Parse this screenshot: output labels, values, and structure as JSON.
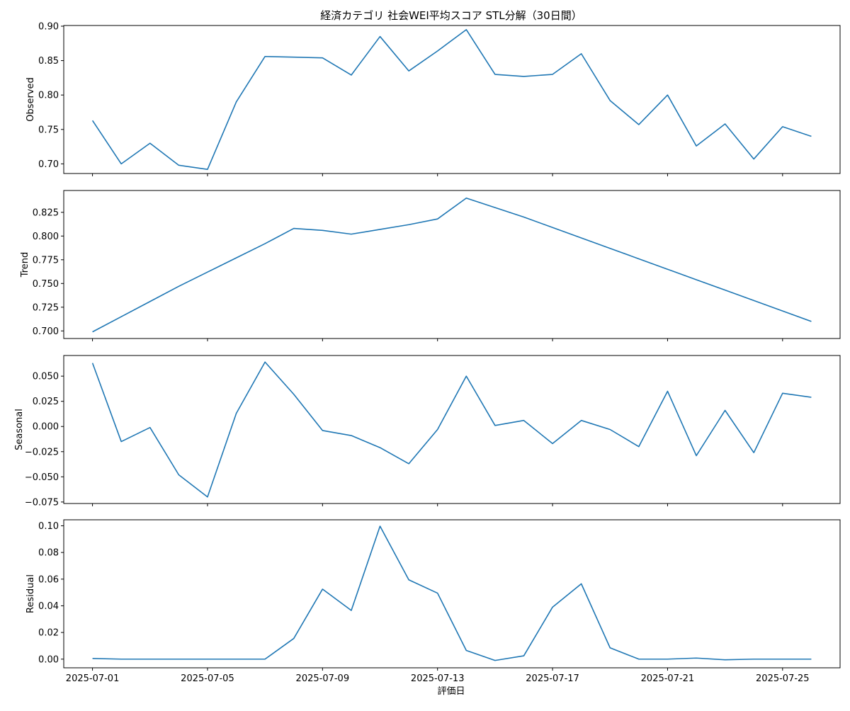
{
  "chart_data": {
    "type": "line",
    "title": "経済カテゴリ 社会WEI平均スコア STL分解（30日間）",
    "xlabel": "評価日",
    "x": [
      "2025-07-01",
      "2025-07-02",
      "2025-07-03",
      "2025-07-04",
      "2025-07-05",
      "2025-07-06",
      "2025-07-07",
      "2025-07-08",
      "2025-07-09",
      "2025-07-10",
      "2025-07-11",
      "2025-07-12",
      "2025-07-13",
      "2025-07-14",
      "2025-07-15",
      "2025-07-16",
      "2025-07-17",
      "2025-07-18",
      "2025-07-19",
      "2025-07-20",
      "2025-07-21",
      "2025-07-22",
      "2025-07-23",
      "2025-07-24",
      "2025-07-25",
      "2025-07-26"
    ],
    "xticks": [
      "2025-07-01",
      "2025-07-05",
      "2025-07-09",
      "2025-07-13",
      "2025-07-17",
      "2025-07-21",
      "2025-07-25"
    ],
    "xlim": [
      "2025-06-30",
      "2025-07-27"
    ],
    "line_color": "#1f77b4",
    "grid": false,
    "panels": [
      {
        "ylabel": "Observed",
        "ylim": [
          0.686,
          0.901
        ],
        "yticks": [
          "0.70",
          "0.75",
          "0.80",
          "0.85",
          "0.90"
        ],
        "values": [
          0.763,
          0.7,
          0.73,
          0.698,
          0.692,
          0.79,
          0.856,
          0.855,
          0.854,
          0.829,
          0.885,
          0.835,
          0.864,
          0.895,
          0.83,
          0.827,
          0.83,
          0.86,
          0.792,
          0.757,
          0.8,
          0.726,
          0.758,
          0.707,
          0.754,
          0.74
        ]
      },
      {
        "ylabel": "Trend",
        "ylim": [
          0.692,
          0.848
        ],
        "yticks": [
          "0.700",
          "0.725",
          "0.750",
          "0.775",
          "0.800",
          "0.825"
        ],
        "values": [
          0.699,
          0.715,
          0.731,
          0.747,
          0.762,
          0.777,
          0.792,
          0.808,
          0.806,
          0.802,
          0.807,
          0.812,
          0.818,
          0.84,
          0.83,
          0.82,
          0.809,
          0.798,
          0.787,
          0.776,
          0.765,
          0.754,
          0.743,
          0.732,
          0.721,
          0.71
        ]
      },
      {
        "ylabel": "Seasonal",
        "ylim": [
          -0.0765,
          0.0705
        ],
        "yticks": [
          "−0.075",
          "−0.050",
          "−0.025",
          "0.000",
          "0.025",
          "0.050"
        ],
        "values": [
          0.063,
          -0.015,
          -0.001,
          -0.048,
          -0.07,
          0.013,
          0.064,
          0.032,
          -0.004,
          -0.009,
          -0.021,
          -0.037,
          -0.003,
          0.05,
          0.001,
          0.006,
          -0.017,
          0.006,
          -0.003,
          -0.02,
          0.035,
          -0.029,
          0.016,
          -0.026,
          0.033,
          0.029
        ]
      },
      {
        "ylabel": "Residual",
        "ylim": [
          -0.0065,
          0.1045
        ],
        "yticks": [
          "0.00",
          "0.02",
          "0.04",
          "0.06",
          "0.08",
          "0.10"
        ],
        "values": [
          0.0005,
          0.0,
          0.0,
          0.0,
          0.0,
          0.0,
          0.0,
          0.0155,
          0.0525,
          0.0365,
          0.0997,
          0.0595,
          0.0495,
          0.0065,
          -0.001,
          0.0025,
          0.039,
          0.0565,
          0.0085,
          0.0,
          0.0,
          0.0008,
          -0.0005,
          0.0,
          0.0,
          0.0
        ]
      }
    ]
  }
}
